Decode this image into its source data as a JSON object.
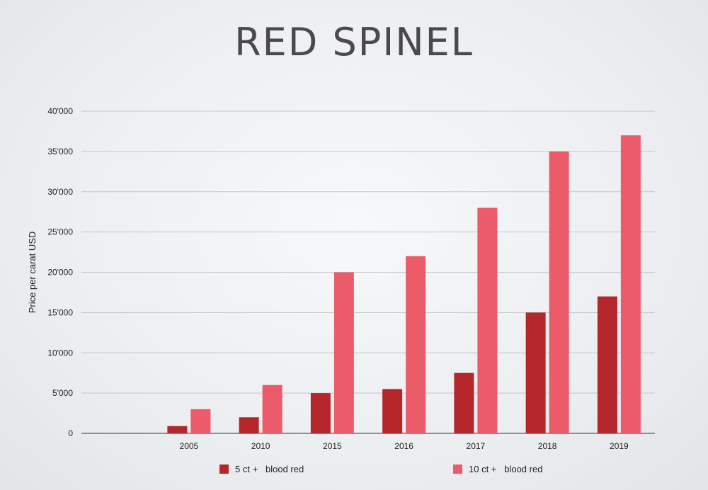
{
  "chart_data": {
    "type": "bar",
    "title": "RED SPINEL",
    "xlabel": "",
    "ylabel": "Price per carat USD",
    "ylim": [
      0,
      40000
    ],
    "yticks": [
      0,
      5000,
      10000,
      15000,
      20000,
      25000,
      30000,
      35000,
      40000
    ],
    "ytick_labels": [
      "0",
      "5'000",
      "10'000",
      "15'000",
      "20'000",
      "25'000",
      "30'000",
      "35'000",
      "40'000"
    ],
    "categories": [
      "2005",
      "2010",
      "2015",
      "2016",
      "2017",
      "2018",
      "2019"
    ],
    "series": [
      {
        "name": "5 ct +   blood red",
        "color": "#b5262a",
        "values": [
          900,
          2000,
          5000,
          5500,
          7500,
          15000,
          17000
        ]
      },
      {
        "name": "10 ct +   blood red",
        "color": "#ec5b6a",
        "values": [
          3000,
          6000,
          20000,
          22000,
          28000,
          35000,
          37000
        ]
      }
    ],
    "grid": true,
    "legend": "bottom"
  }
}
